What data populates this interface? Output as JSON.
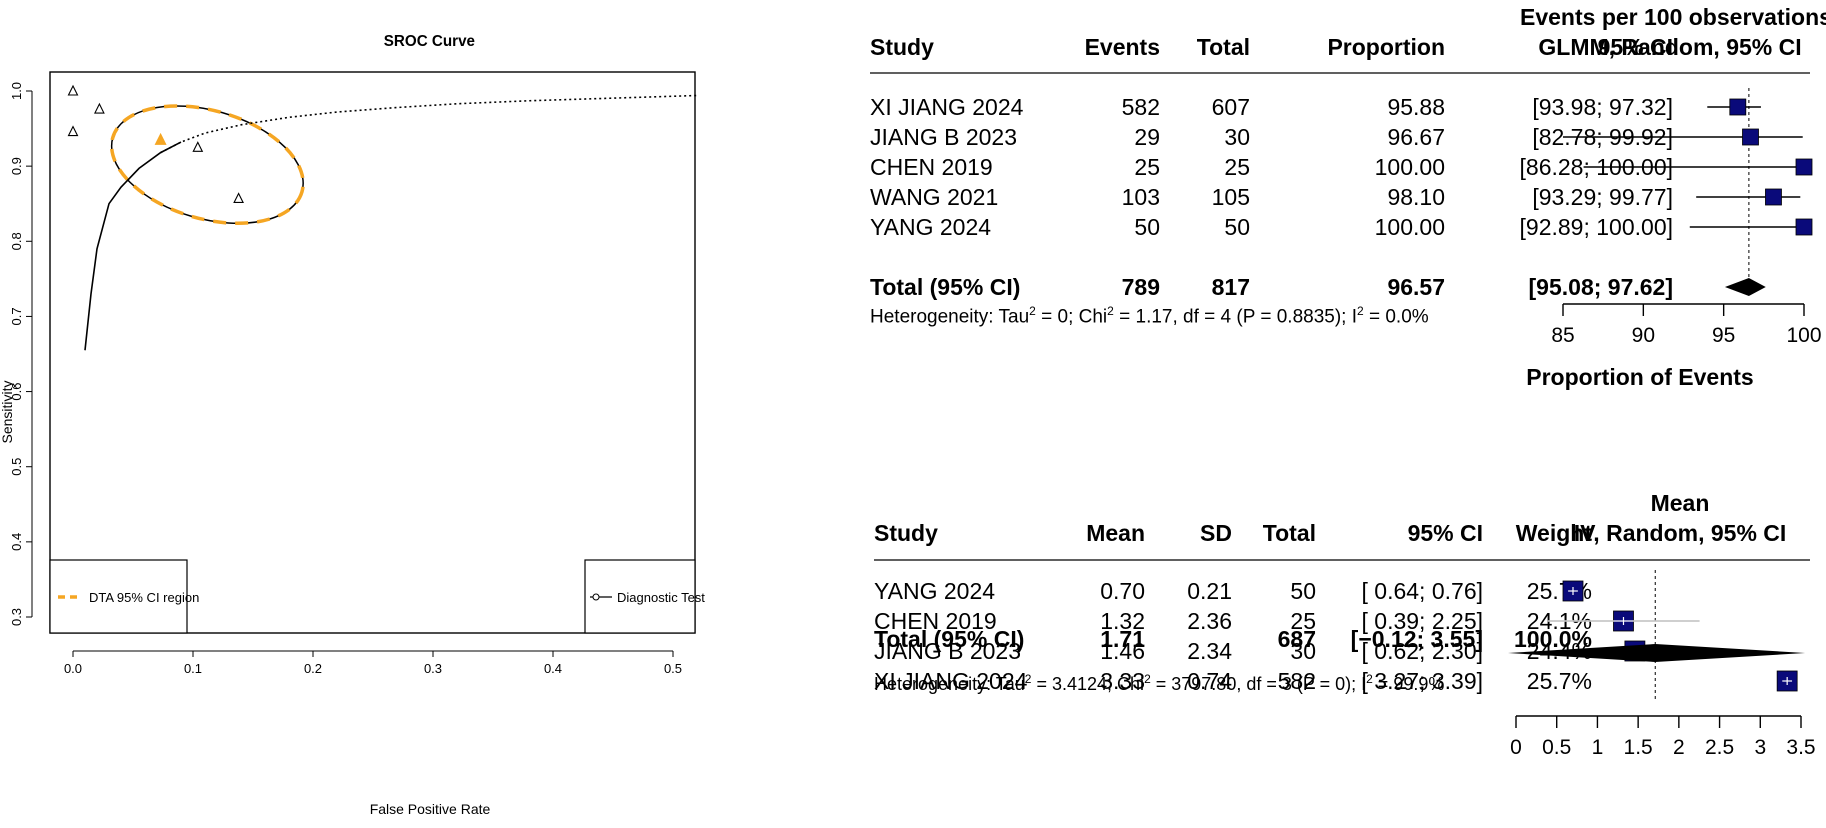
{
  "chart_data": [
    {
      "type": "scatter",
      "title": "SROC Curve",
      "xlabel": "False Positive Rate",
      "ylabel": "Sensitivity",
      "xlim": [
        0,
        0.5
      ],
      "ylim": [
        0.3,
        1.0
      ],
      "xticks": [
        "0.0",
        "0.1",
        "0.2",
        "0.3",
        "0.4",
        "0.5"
      ],
      "yticks": [
        "0.3",
        "0.4",
        "0.5",
        "0.6",
        "0.7",
        "0.8",
        "0.9",
        "1.0"
      ],
      "studies": [
        {
          "x": 0.0,
          "y": 1.0
        },
        {
          "x": 0.0,
          "y": 0.946
        },
        {
          "x": 0.022,
          "y": 0.976
        },
        {
          "x": 0.104,
          "y": 0.925
        },
        {
          "x": 0.138,
          "y": 0.857
        }
      ],
      "summary_point": {
        "x": 0.073,
        "y": 0.935
      },
      "sroc_curve": [
        [
          0.01,
          0.655
        ],
        [
          0.015,
          0.73
        ],
        [
          0.02,
          0.79
        ],
        [
          0.03,
          0.85
        ],
        [
          0.04,
          0.872
        ],
        [
          0.055,
          0.897
        ],
        [
          0.073,
          0.918
        ],
        [
          0.09,
          0.932
        ],
        [
          0.11,
          0.944
        ],
        [
          0.14,
          0.955
        ],
        [
          0.18,
          0.965
        ],
        [
          0.22,
          0.972
        ],
        [
          0.27,
          0.978
        ],
        [
          0.32,
          0.983
        ],
        [
          0.38,
          0.987
        ],
        [
          0.44,
          0.99
        ],
        [
          0.5,
          0.993
        ],
        [
          0.52,
          0.994
        ]
      ],
      "ci_region": {
        "center": [
          0.112,
          0.902
        ],
        "rx": 0.082,
        "ry": 0.072,
        "tilt_deg": 16
      },
      "legend": [
        {
          "label": "DTA 95% CI region",
          "color": "#f5a623",
          "position": "bottom-left"
        },
        {
          "label": "Diagnostic Test",
          "color": "#000000",
          "position": "bottom-right"
        }
      ],
      "grid": false
    },
    {
      "type": "table",
      "columns": [
        "Study",
        "Events",
        "Total",
        "Proportion",
        "95% CI"
      ],
      "plot_header": [
        "Events per 100 observations",
        "GLMM, Random, 95% CI"
      ],
      "rows": [
        {
          "study": "XI JIANG 2024",
          "events": "582",
          "total": "607",
          "proportion": "95.88",
          "ci": "[93.98;  97.32]",
          "est": 95.88,
          "lo": 93.98,
          "hi": 97.32
        },
        {
          "study": "JIANG B 2023",
          "events": "29",
          "total": "30",
          "proportion": "96.67",
          "ci": "[82.78;  99.92]",
          "est": 96.67,
          "lo": 82.78,
          "hi": 99.92
        },
        {
          "study": "CHEN 2019",
          "events": "25",
          "total": "25",
          "proportion": "100.00",
          "ci": "[86.28; 100.00]",
          "est": 100.0,
          "lo": 86.28,
          "hi": 100.0
        },
        {
          "study": "WANG 2021",
          "events": "103",
          "total": "105",
          "proportion": "98.10",
          "ci": "[93.29;  99.77]",
          "est": 98.1,
          "lo": 93.29,
          "hi": 99.77
        },
        {
          "study": "YANG 2024",
          "events": "50",
          "total": "50",
          "proportion": "100.00",
          "ci": "[92.89; 100.00]",
          "est": 100.0,
          "lo": 92.89,
          "hi": 100.0
        }
      ],
      "total": {
        "label": "Total (95% CI)",
        "events": "789",
        "total": "817",
        "proportion": "96.57",
        "ci": "[95.08;  97.62]",
        "est": 96.57,
        "lo": 95.08,
        "hi": 97.62
      },
      "heterogeneity": {
        "tau2": "0",
        "chi2": "1.17",
        "df": "4",
        "p": "0.8835",
        "i2": "0.0%"
      },
      "xaxis_label": "Proportion of Events",
      "xlim": [
        85,
        100
      ],
      "xticks": [
        85,
        90,
        95,
        100
      ],
      "ref_line": 96.57
    },
    {
      "type": "table",
      "columns": [
        "Study",
        "Mean",
        "SD",
        "Total",
        "95% CI",
        "Weight"
      ],
      "plot_header": [
        "Mean",
        "IV, Random, 95% CI"
      ],
      "rows": [
        {
          "study": "YANG 2024",
          "mean": "0.70",
          "sd": "0.21",
          "total": "50",
          "ci": "[ 0.64; 0.76]",
          "weight": "25.7%",
          "est": 0.7,
          "lo": 0.64,
          "hi": 0.76
        },
        {
          "study": "CHEN 2019",
          "mean": "1.32",
          "sd": "2.36",
          "total": "25",
          "ci": "[ 0.39; 2.25]",
          "weight": "24.1%",
          "est": 1.32,
          "lo": 0.39,
          "hi": 2.25
        },
        {
          "study": "JIANG B 2023",
          "mean": "1.46",
          "sd": "2.34",
          "total": "30",
          "ci": "[ 0.62; 2.30]",
          "weight": "24.4%",
          "est": 1.46,
          "lo": 0.62,
          "hi": 2.3
        },
        {
          "study": "XI JIANG 2024",
          "mean": "3.33",
          "sd": "0.74",
          "total": "582",
          "ci": "[ 3.27; 3.39]",
          "weight": "25.7%",
          "est": 3.33,
          "lo": 3.27,
          "hi": 3.39
        }
      ],
      "total": {
        "label": "Total (95% CI)",
        "mean": "1.71",
        "total": "687",
        "ci": "[−0.12; 3.55]",
        "weight": "100.0%",
        "est": 1.71,
        "lo": -0.12,
        "hi": 3.55
      },
      "heterogeneity": {
        "tau2": "3.4124",
        "chi2": "3797.80",
        "df": "3",
        "p": "0",
        "i2": "99.9%"
      },
      "xlim": [
        0,
        3.5
      ],
      "xticks": [
        "0",
        "0.5",
        "1",
        "1.5",
        "2",
        "2.5",
        "3",
        "3.5"
      ],
      "ref_line": 1.71
    }
  ]
}
